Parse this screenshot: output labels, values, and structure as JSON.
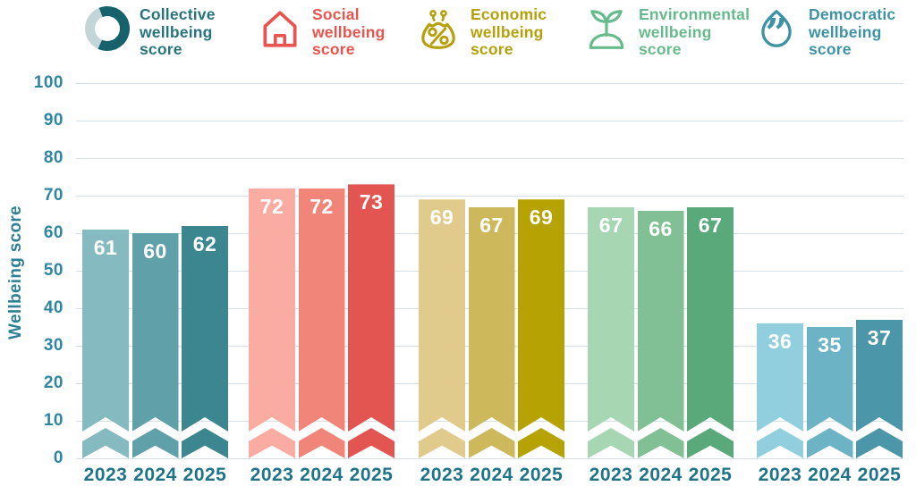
{
  "chart_data": {
    "type": "bar",
    "title": "",
    "ylabel": "Wellbeing score",
    "xlabel": "",
    "ylim": [
      0,
      100
    ],
    "ytick_step": 10,
    "grid": true,
    "legend_position": "top",
    "categories": [
      "2023",
      "2024",
      "2025"
    ],
    "series": [
      {
        "name": "Collective wellbeing score",
        "values": [
          61,
          60,
          62
        ],
        "colors": [
          "#85BAC0",
          "#60A1A9",
          "#3B868F"
        ],
        "label_color": "#26747E",
        "icon": "donut-ring-icon"
      },
      {
        "name": "Social wellbeing score",
        "values": [
          72,
          72,
          73
        ],
        "colors": [
          "#FAACA2",
          "#F28579",
          "#E25551"
        ],
        "label_color": "#E8554E",
        "icon": "house-icon"
      },
      {
        "name": "Economic wellbeing score",
        "values": [
          69,
          67,
          69
        ],
        "colors": [
          "#E0CB8D",
          "#CDB95B",
          "#B7A203"
        ],
        "label_color": "#B5A009",
        "icon": "money-purse-percent-icon"
      },
      {
        "name": "Environmental wellbeing score",
        "values": [
          67,
          66,
          67
        ],
        "colors": [
          "#A6D6B2",
          "#80C094",
          "#59A97A"
        ],
        "label_color": "#66BB8C",
        "icon": "sprout-icon"
      },
      {
        "name": "Democratic wellbeing score",
        "values": [
          36,
          35,
          37
        ],
        "colors": [
          "#91CFDF",
          "#6CB3C5",
          "#4B96A9"
        ],
        "label_color": "#3D92A6",
        "icon": "speech-drop-quote-icon"
      }
    ]
  },
  "axis": {
    "ylabel": "Wellbeing score",
    "yticks": [
      "0",
      "10",
      "20",
      "30",
      "40",
      "50",
      "60",
      "70",
      "80",
      "90",
      "100"
    ]
  },
  "colors": {
    "gridline": "#D2DFE7",
    "tick_text": "#2E86A0",
    "year_text": "#1F7489",
    "donut_dark": "#16616B",
    "donut_light": "#C3D5D7"
  }
}
